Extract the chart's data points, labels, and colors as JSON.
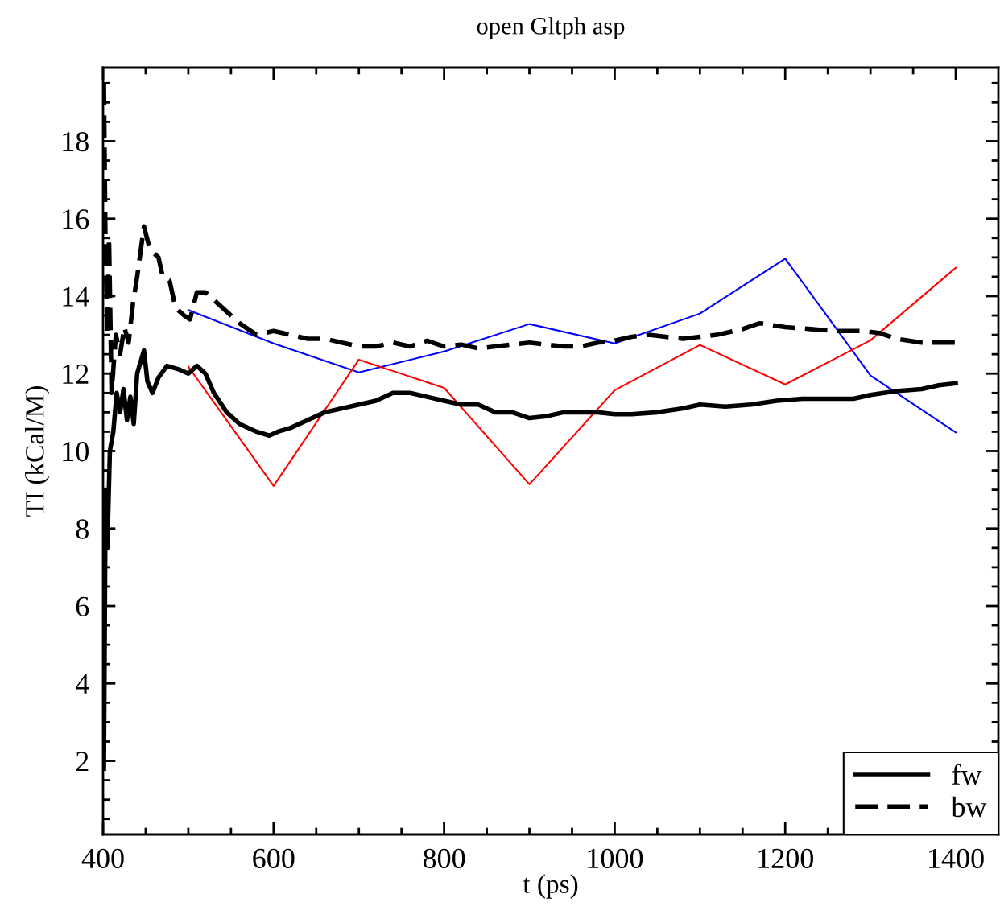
{
  "chart_data": {
    "type": "line",
    "title": "open Gltph asp",
    "xlabel": "t (ps)",
    "ylabel": "TI (kCal/M)",
    "xlim": [
      400,
      1450
    ],
    "ylim": [
      0.1,
      19.9
    ],
    "xticks": [
      400,
      {
        "value": 450,
        "label": null
      },
      {
        "value": 500,
        "label": null
      },
      {
        "value": 550,
        "label": null
      },
      600,
      {
        "value": 650,
        "label": null
      },
      {
        "value": 700,
        "label": null
      },
      {
        "value": 750,
        "label": null
      },
      800,
      {
        "value": 850,
        "label": null
      },
      {
        "value": 900,
        "label": null
      },
      {
        "value": 950,
        "label": null
      },
      1000,
      {
        "value": 1050,
        "label": null
      },
      {
        "value": 1100,
        "label": null
      },
      {
        "value": 1150,
        "label": null
      },
      1200,
      {
        "value": 1250,
        "label": null
      },
      {
        "value": 1300,
        "label": null
      },
      {
        "value": 1350,
        "label": null
      },
      1400
    ],
    "yticks": [
      {
        "value": 0.5,
        "label": null
      },
      {
        "value": 1,
        "label": null
      },
      {
        "value": 1.5,
        "label": null
      },
      2,
      {
        "value": 2.5,
        "label": null
      },
      {
        "value": 3,
        "label": null
      },
      {
        "value": 3.5,
        "label": null
      },
      4,
      {
        "value": 4.5,
        "label": null
      },
      {
        "value": 5,
        "label": null
      },
      {
        "value": 5.5,
        "label": null
      },
      6,
      {
        "value": 6.5,
        "label": null
      },
      {
        "value": 7,
        "label": null
      },
      {
        "value": 7.5,
        "label": null
      },
      8,
      {
        "value": 8.5,
        "label": null
      },
      {
        "value": 9,
        "label": null
      },
      {
        "value": 9.5,
        "label": null
      },
      10,
      {
        "value": 10.5,
        "label": null
      },
      {
        "value": 11,
        "label": null
      },
      {
        "value": 11.5,
        "label": null
      },
      12,
      {
        "value": 12.5,
        "label": null
      },
      {
        "value": 13,
        "label": null
      },
      {
        "value": 13.5,
        "label": null
      },
      14,
      {
        "value": 14.5,
        "label": null
      },
      {
        "value": 15,
        "label": null
      },
      {
        "value": 15.5,
        "label": null
      },
      16,
      {
        "value": 16.5,
        "label": null
      },
      {
        "value": 17,
        "label": null
      },
      {
        "value": 17.5,
        "label": null
      },
      18,
      {
        "value": 18.5,
        "label": null
      },
      {
        "value": 19,
        "label": null
      },
      {
        "value": 19.5,
        "label": null
      }
    ],
    "grid": false,
    "legend": "bottom right",
    "marker": "none",
    "series": [
      {
        "name": "fw",
        "color": "#000000",
        "line_style": "solid",
        "x": [
          401,
          403,
          405,
          408,
          412,
          416,
          420,
          424,
          428,
          432,
          436,
          440,
          448,
          452,
          458,
          465,
          475,
          490,
          500,
          510,
          520,
          530,
          545,
          560,
          580,
          595,
          605,
          620,
          640,
          660,
          680,
          700,
          720,
          740,
          760,
          780,
          800,
          820,
          840,
          860,
          880,
          900,
          920,
          940,
          960,
          980,
          1000,
          1020,
          1050,
          1080,
          1100,
          1130,
          1160,
          1190,
          1220,
          1250,
          1280,
          1300,
          1330,
          1360,
          1380,
          1400
        ],
        "values": [
          1.8,
          9.0,
          7.5,
          10.0,
          10.5,
          11.5,
          11.0,
          11.6,
          10.8,
          11.4,
          10.7,
          12.0,
          12.6,
          11.8,
          11.5,
          11.9,
          12.2,
          12.1,
          12.0,
          12.2,
          12.0,
          11.5,
          11.0,
          10.7,
          10.5,
          10.4,
          10.5,
          10.6,
          10.8,
          11.0,
          11.1,
          11.2,
          11.3,
          11.5,
          11.5,
          11.4,
          11.3,
          11.2,
          11.2,
          11.0,
          11.0,
          10.85,
          10.9,
          11.0,
          11.0,
          11.0,
          10.95,
          10.95,
          11.0,
          11.1,
          11.2,
          11.15,
          11.2,
          11.3,
          11.35,
          11.35,
          11.35,
          11.45,
          11.55,
          11.6,
          11.7,
          11.75
        ]
      },
      {
        "name": "bw",
        "color": "#000000",
        "line_style": "dashed",
        "x": [
          401,
          403,
          405,
          407,
          410,
          415,
          420,
          425,
          430,
          435,
          440,
          448,
          455,
          465,
          470,
          478,
          485,
          495,
          502,
          510,
          520,
          540,
          560,
          580,
          600,
          620,
          640,
          660,
          680,
          700,
          720,
          740,
          760,
          780,
          800,
          820,
          840,
          860,
          880,
          900,
          920,
          940,
          960,
          980,
          1000,
          1020,
          1040,
          1060,
          1080,
          1100,
          1120,
          1150,
          1170,
          1200,
          1230,
          1260,
          1290,
          1310,
          1330,
          1360,
          1400
        ],
        "values": [
          19.5,
          15.0,
          13.0,
          15.5,
          11.5,
          13.0,
          12.5,
          13.2,
          12.8,
          13.8,
          14.5,
          15.8,
          15.2,
          15.0,
          14.5,
          14.4,
          13.7,
          13.5,
          13.4,
          14.1,
          14.1,
          13.7,
          13.3,
          13.0,
          13.1,
          13.0,
          12.9,
          12.9,
          12.8,
          12.7,
          12.7,
          12.8,
          12.7,
          12.85,
          12.7,
          12.75,
          12.65,
          12.7,
          12.75,
          12.8,
          12.75,
          12.7,
          12.7,
          12.8,
          12.85,
          12.95,
          13.0,
          12.95,
          12.9,
          12.95,
          13.0,
          13.15,
          13.3,
          13.2,
          13.15,
          13.1,
          13.1,
          13.05,
          12.9,
          12.8,
          12.8
        ]
      },
      {
        "color": "#0000ff",
        "line_style": "solid",
        "x": [
          500,
          600,
          700,
          800,
          900,
          1000,
          1100,
          1200,
          1300,
          1400
        ],
        "values": [
          13.64,
          12.78,
          12.03,
          12.57,
          13.28,
          12.78,
          13.55,
          14.97,
          11.95,
          10.48
        ]
      },
      {
        "color": "#ff0000",
        "line_style": "solid",
        "x": [
          500,
          600,
          700,
          800,
          900,
          1000,
          1100,
          1200,
          1300,
          1400
        ],
        "values": [
          12.18,
          9.1,
          12.36,
          11.63,
          9.14,
          11.57,
          12.74,
          11.72,
          12.86,
          14.73
        ]
      }
    ]
  }
}
